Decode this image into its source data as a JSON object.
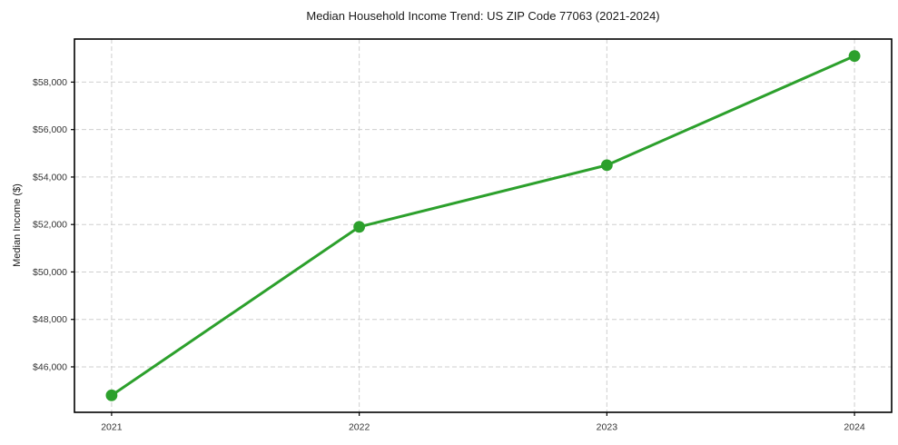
{
  "chart_data": {
    "type": "line",
    "title": "Median Household Income Trend: US ZIP Code 77063 (2021-2024)",
    "xlabel": "",
    "ylabel": "Median Income ($)",
    "x": [
      2021,
      2022,
      2023,
      2024
    ],
    "x_tick_labels": [
      "2021",
      "2022",
      "2023",
      "2024"
    ],
    "series": [
      {
        "name": "Median Household Income",
        "values": [
          44800,
          51900,
          54500,
          59100
        ],
        "color": "#2ca02c",
        "marker": "circle"
      }
    ],
    "xlim": [
      2020.85,
      2024.15
    ],
    "ylim": [
      44085,
      59815
    ],
    "yticks": [
      46000,
      48000,
      50000,
      52000,
      54000,
      56000,
      58000
    ],
    "y_tick_labels": [
      "$46,000",
      "$48,000",
      "$50,000",
      "$52,000",
      "$54,000",
      "$56,000",
      "$58,000"
    ],
    "grid": true,
    "grid_color": "#cfcfcf",
    "grid_style": "dashed",
    "legend_position": "none",
    "line_width": 3,
    "marker_radius": 6.4,
    "spine_color": "#000000",
    "tick_color": "#000000",
    "tick_label_color": "#333333",
    "title_color": "#1a1a1a",
    "background_color": "#ffffff"
  }
}
